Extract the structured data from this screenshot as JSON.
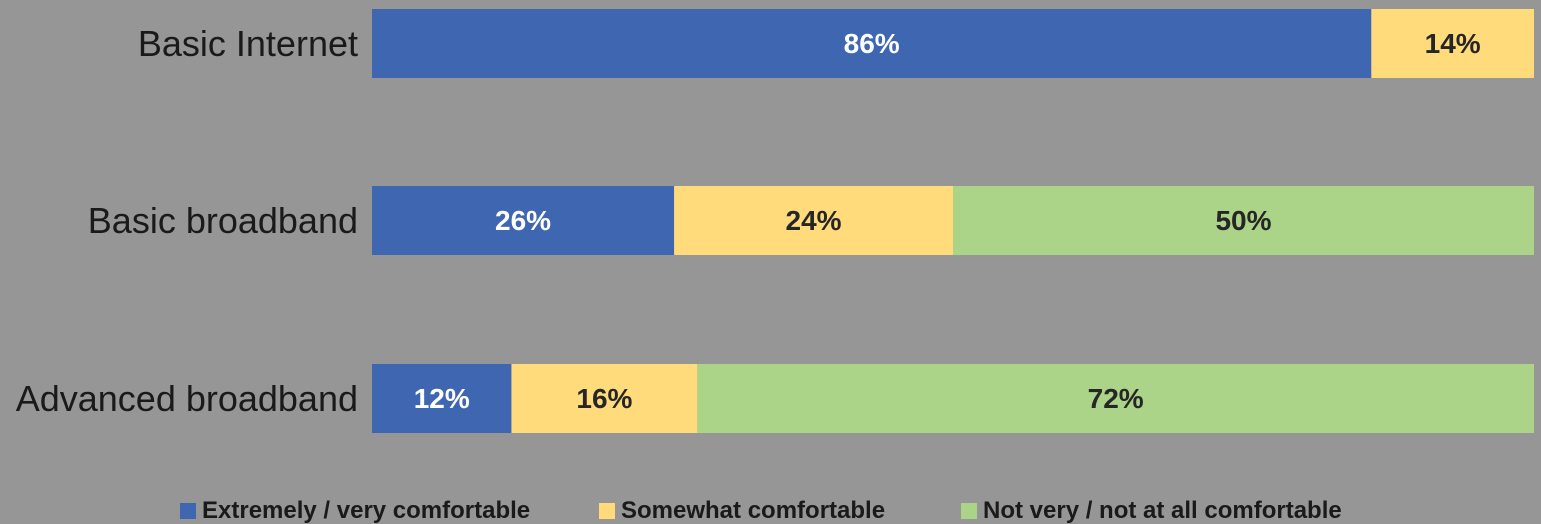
{
  "colors": {
    "background": "#969696",
    "extremely": "#3f66b1",
    "somewhat": "#ffdb7c",
    "not_very": "#acd488"
  },
  "chart_data": {
    "type": "bar",
    "orientation": "horizontal",
    "stacked": true,
    "categories": [
      "Basic Internet",
      "Basic broadband",
      "Advanced broadband"
    ],
    "series": [
      {
        "name": "Extremely / very comfortable",
        "values": [
          86,
          26,
          12
        ],
        "labels": [
          "86%",
          "26%",
          "12%"
        ],
        "color_key": "extremely"
      },
      {
        "name": "Somewhat comfortable",
        "values": [
          14,
          24,
          16
        ],
        "labels": [
          "14%",
          "24%",
          "16%"
        ],
        "color_key": "somewhat"
      },
      {
        "name": "Not very / not at all comfortable",
        "values": [
          0,
          50,
          72
        ],
        "labels": [
          "",
          "50%",
          "72%"
        ],
        "color_key": "not_very"
      }
    ],
    "xlim": [
      0,
      100
    ],
    "grid": false,
    "legend_position": "bottom"
  }
}
